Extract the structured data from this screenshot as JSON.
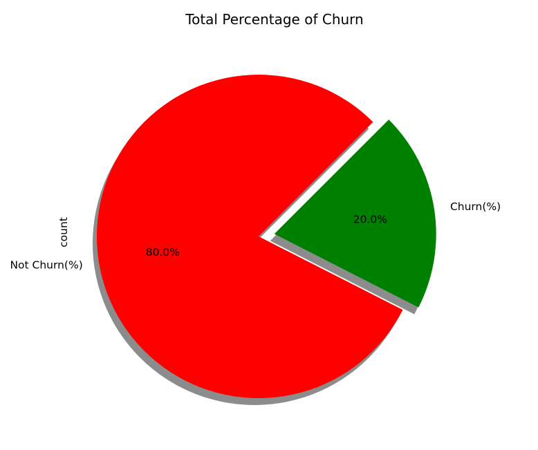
{
  "chart_data": {
    "type": "pie",
    "title": "Total Percentage of Churn",
    "ylabel": "count",
    "categories": [
      "Not Churn(%)",
      "Churn(%)"
    ],
    "values": [
      80.0,
      20.0
    ],
    "pct_labels": [
      "80.0%",
      "20.0%"
    ],
    "colors": [
      "#ff0000",
      "#008000"
    ],
    "exploded": [
      false,
      true
    ],
    "shadow": true,
    "start_angle": 45
  }
}
